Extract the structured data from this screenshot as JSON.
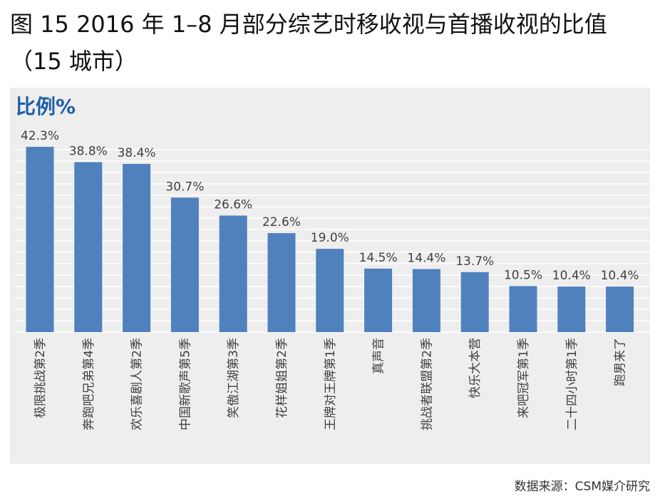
{
  "title": "图 15 2016 年 1–8 月部分综艺时移收视与首播收视的比值（15 城市）",
  "source": "数据来源：CSM媒介研究",
  "colors": {
    "bar": "#4f81bd",
    "panel": "#eeeeee",
    "axis_label": "#1f5fa8",
    "text": "#404040"
  },
  "chart_data": {
    "type": "bar",
    "ylabel": "比例%",
    "categories": [
      "极限挑战第2季",
      "奔跑吧兄弟第4季",
      "欢乐喜剧人第2季",
      "中国新歌声第5季",
      "笑傲江湖第3季",
      "花样姐姐第2季",
      "王牌对王牌第1季",
      "真声音",
      "挑战者联盟第2季",
      "快乐大本营",
      "来吧冠军第1季",
      "二十四小时第1季",
      "跑男来了"
    ],
    "values": [
      42.3,
      38.8,
      38.4,
      30.7,
      26.6,
      22.6,
      19.0,
      14.5,
      14.4,
      13.7,
      10.5,
      10.4,
      10.4
    ],
    "labels": [
      "42.3%",
      "38.8%",
      "38.4%",
      "30.7%",
      "26.6%",
      "22.6%",
      "19.0%",
      "14.5%",
      "14.4%",
      "13.7%",
      "10.5%",
      "10.4%",
      "10.4%"
    ],
    "ylim": [
      0,
      42.3
    ],
    "grid": true
  }
}
